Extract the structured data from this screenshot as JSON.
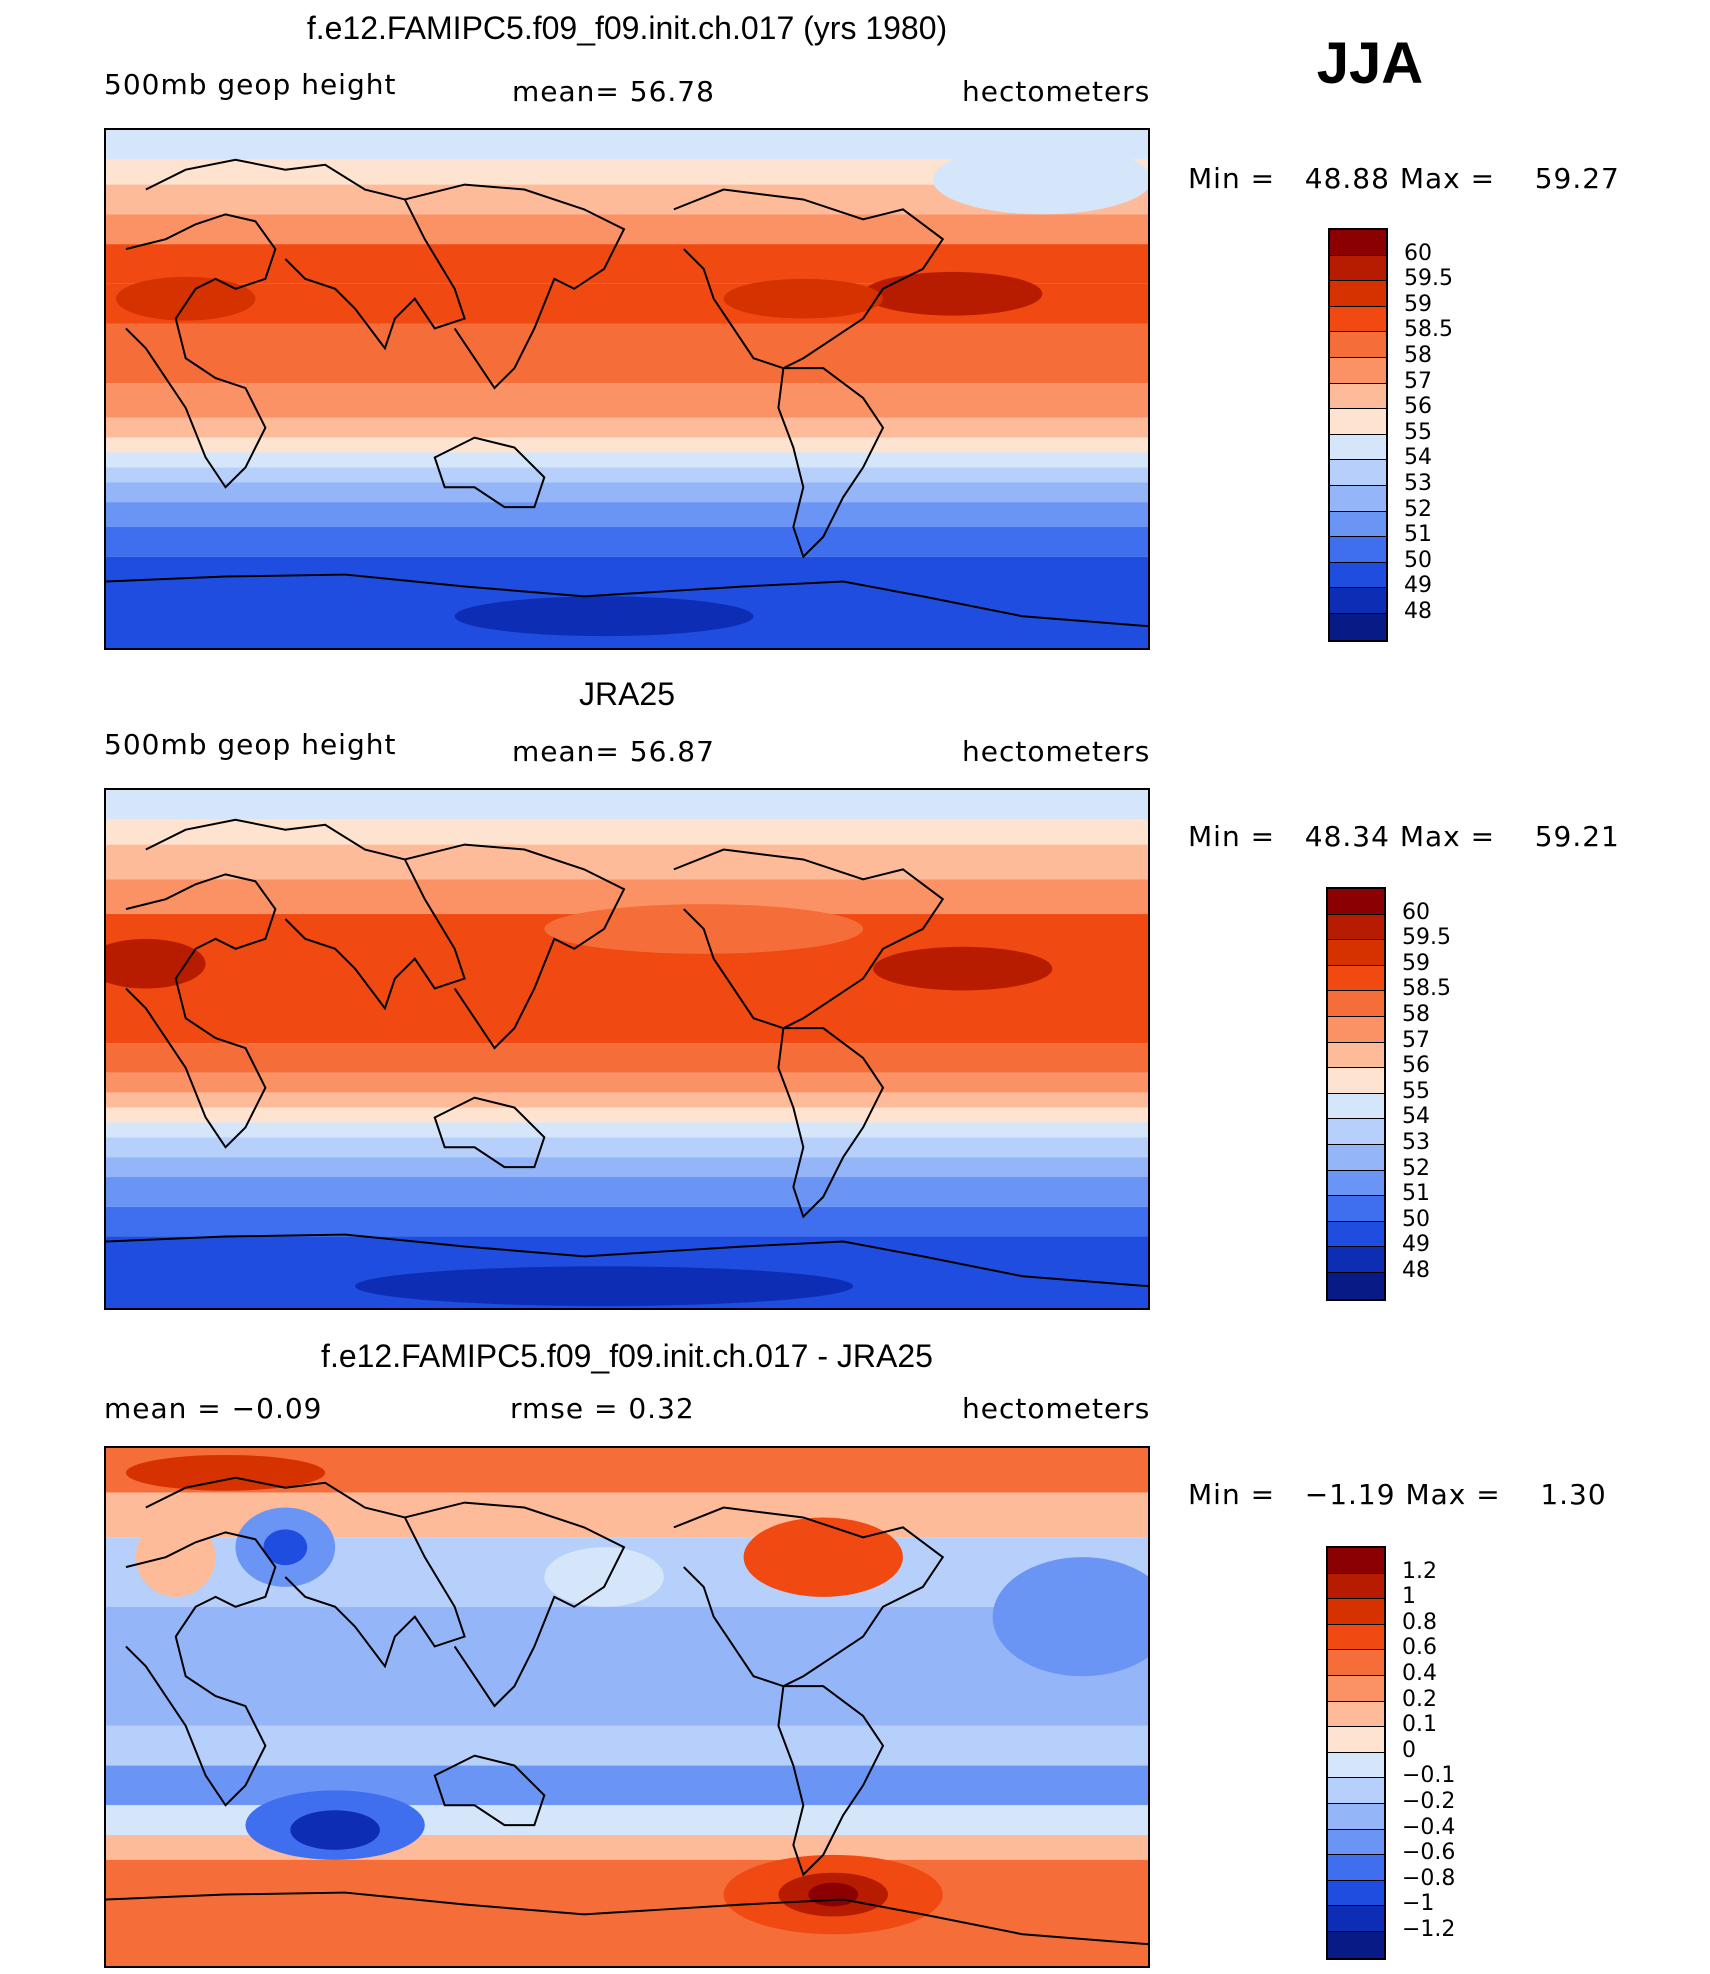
{
  "season": "JJA",
  "panels": [
    {
      "id": "model",
      "title": "f.e12.FAMIPC5.f09_f09.init.ch.017 (yrs 1980)",
      "left_label": "500mb geop height",
      "mid_label": "mean=  56.78",
      "right_label": "hectometers",
      "min_label": "Min =",
      "min_value": "48.88",
      "max_label": "Max =",
      "max_value": "59.27",
      "colorbar_levels": [
        "60",
        "59.5",
        "59",
        "58.5",
        "58",
        "57",
        "56",
        "55",
        "54",
        "53",
        "52",
        "51",
        "50",
        "49",
        "48"
      ],
      "colorbar_colors": [
        "#8b0000",
        "#b81c00",
        "#d63200",
        "#f04a12",
        "#f56e3a",
        "#fa9266",
        "#fdbb9a",
        "#fde3d0",
        "#d5e6fb",
        "#b6d0fb",
        "#94b6f8",
        "#6a95f5",
        "#3f6fef",
        "#1f4de0",
        "#0d2eb4",
        "#081a85"
      ]
    },
    {
      "id": "obs",
      "title": "JRA25",
      "left_label": "500mb geop height",
      "mid_label": "mean=  56.87",
      "right_label": "hectometers",
      "min_label": "Min =",
      "min_value": "48.34",
      "max_label": "Max =",
      "max_value": "59.21",
      "colorbar_levels": [
        "60",
        "59.5",
        "59",
        "58.5",
        "58",
        "57",
        "56",
        "55",
        "54",
        "53",
        "52",
        "51",
        "50",
        "49",
        "48"
      ],
      "colorbar_colors": [
        "#8b0000",
        "#b81c00",
        "#d63200",
        "#f04a12",
        "#f56e3a",
        "#fa9266",
        "#fdbb9a",
        "#fde3d0",
        "#d5e6fb",
        "#b6d0fb",
        "#94b6f8",
        "#6a95f5",
        "#3f6fef",
        "#1f4de0",
        "#0d2eb4",
        "#081a85"
      ]
    },
    {
      "id": "diff",
      "title": "f.e12.FAMIPC5.f09_f09.init.ch.017 - JRA25",
      "left_label": "mean =   −0.09",
      "mid_label": "rmse =    0.32",
      "right_label": "hectometers",
      "min_label": "Min =",
      "min_value": "−1.19",
      "max_label": "Max =",
      "max_value": "1.30",
      "colorbar_levels": [
        "1.2",
        "1",
        "0.8",
        "0.6",
        "0.4",
        "0.2",
        "0.1",
        "0",
        "−0.1",
        "−0.2",
        "−0.4",
        "−0.6",
        "−0.8",
        "−1",
        "−1.2"
      ],
      "colorbar_colors": [
        "#8b0000",
        "#b81c00",
        "#d63200",
        "#f04a12",
        "#f56e3a",
        "#fa9266",
        "#fdbb9a",
        "#fde3d0",
        "#d5e6fb",
        "#b6d0fb",
        "#94b6f8",
        "#6a95f5",
        "#3f6fef",
        "#1f4de0",
        "#0d2eb4",
        "#081a85"
      ]
    }
  ]
}
